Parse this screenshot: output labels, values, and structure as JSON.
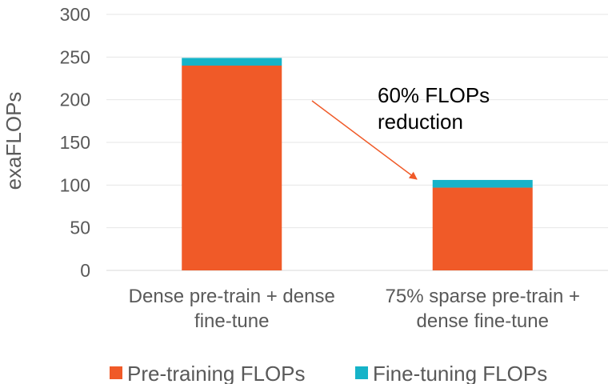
{
  "chart_data": {
    "type": "bar",
    "stacked": true,
    "title": "",
    "xlabel": "",
    "ylabel": "exaFLOPs",
    "ylim": [
      0,
      300
    ],
    "yticks": [
      0,
      50,
      100,
      150,
      200,
      250,
      300
    ],
    "grid": "horizontal",
    "legend_position": "bottom",
    "categories": [
      [
        "Dense pre-train + dense",
        "fine-tune"
      ],
      [
        "75% sparse pre-train +",
        "dense fine-tune"
      ]
    ],
    "series": [
      {
        "name": "Pre-training FLOPs",
        "color": "#f05a28",
        "values": [
          240,
          97
        ]
      },
      {
        "name": "Fine-tuning FLOPs",
        "color": "#16b3c8",
        "values": [
          9,
          9
        ]
      }
    ],
    "annotation": {
      "lines": [
        "60% FLOPs",
        "reduction"
      ],
      "arrow_color": "#f05a28"
    }
  }
}
